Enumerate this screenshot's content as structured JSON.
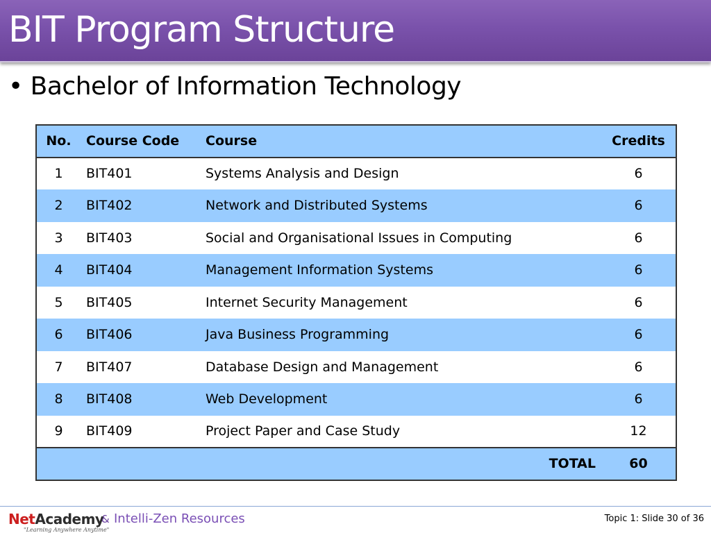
{
  "slide": {
    "title": "BIT Program Structure",
    "subtitle": "• Bachelor of Information Technology"
  },
  "table": {
    "headers": {
      "no": "No.",
      "code": "Course Code",
      "course": "Course",
      "credits": "Credits"
    },
    "rows": [
      {
        "no": "1",
        "code": "BIT401",
        "course": "Systems Analysis and Design",
        "credits": "6"
      },
      {
        "no": "2",
        "code": "BIT402",
        "course": "Network and Distributed Systems",
        "credits": "6"
      },
      {
        "no": "3",
        "code": "BIT403",
        "course": "Social and Organisational Issues in Computing",
        "credits": "6"
      },
      {
        "no": "4",
        "code": "BIT404",
        "course": "Management Information Systems",
        "credits": "6"
      },
      {
        "no": "5",
        "code": "BIT405",
        "course": "Internet Security Management",
        "credits": "6"
      },
      {
        "no": "6",
        "code": "BIT406",
        "course": "Java Business Programming",
        "credits": "6"
      },
      {
        "no": "7",
        "code": "BIT407",
        "course": "Database Design and Management",
        "credits": "6"
      },
      {
        "no": "8",
        "code": "BIT408",
        "course": "Web Development",
        "credits": "6"
      },
      {
        "no": "9",
        "code": "BIT409",
        "course": "Project Paper and Case Study",
        "credits": "12"
      }
    ],
    "total_label": "TOTAL",
    "total_value": "60"
  },
  "footer": {
    "logo_net": "Net",
    "logo_academy": "Academy",
    "logo_tagline": "\"Learning Anywhere Anytime\"",
    "amp": "&",
    "partner": "Intelli-Zen Resources",
    "slide_info": "Topic 1:  Slide 30 of 36"
  },
  "colors": {
    "title_bar": "#7a52ab",
    "table_header": "#99ccff",
    "table_band": "#99ccff",
    "partner_text": "#7a4fb5",
    "logo_red": "#cc1f1f"
  }
}
